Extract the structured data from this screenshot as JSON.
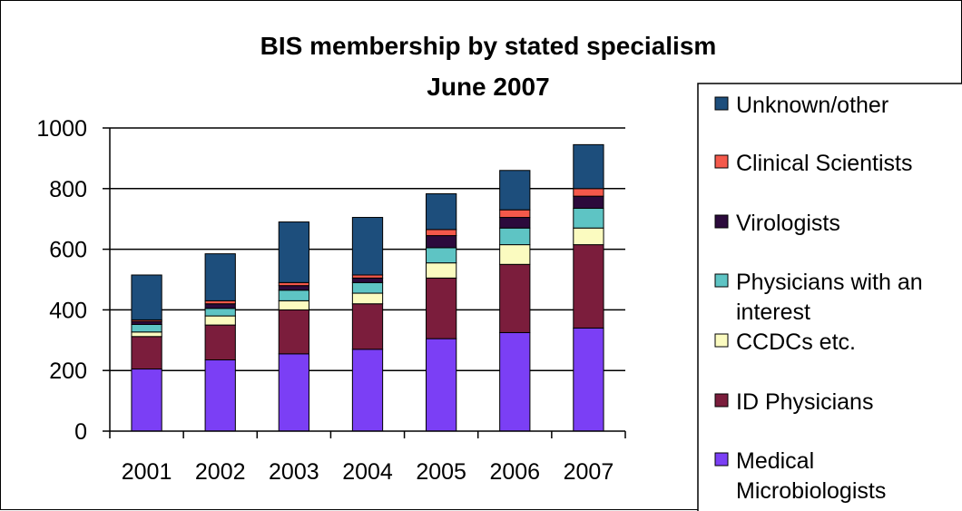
{
  "chart_data": {
    "type": "bar",
    "stacked": true,
    "title": [
      "BIS membership by stated specialism",
      "June 2007"
    ],
    "categories": [
      "2001",
      "2002",
      "2003",
      "2004",
      "2005",
      "2006",
      "2007"
    ],
    "ylim": [
      0,
      1000
    ],
    "yticks": [
      0,
      200,
      400,
      600,
      800,
      1000
    ],
    "grid": true,
    "legend_position": "right",
    "series": [
      {
        "name": "Medical Microbiologists",
        "legend_lines": [
          "Medical",
          "Microbiologists"
        ],
        "color": "#7b3ff5",
        "values": [
          205,
          235,
          255,
          270,
          305,
          325,
          340
        ]
      },
      {
        "name": "ID Physicians",
        "legend_lines": [
          "ID Physicians"
        ],
        "color": "#7b1d3c",
        "values": [
          107,
          115,
          145,
          150,
          200,
          225,
          275
        ]
      },
      {
        "name": "CCDCs etc.",
        "legend_lines": [
          "CCDCs etc."
        ],
        "color": "#fbfbc0",
        "values": [
          15,
          30,
          30,
          35,
          50,
          65,
          55
        ]
      },
      {
        "name": "Physicians with an interest",
        "legend_lines": [
          "Physicians with an",
          "interest"
        ],
        "color": "#5ec4c4",
        "values": [
          25,
          25,
          35,
          35,
          50,
          55,
          65
        ]
      },
      {
        "name": "Virologists",
        "legend_lines": [
          "Virologists"
        ],
        "color": "#2c0a3c",
        "values": [
          10,
          15,
          15,
          15,
          40,
          35,
          40
        ]
      },
      {
        "name": "Clinical Scientists",
        "legend_lines": [
          "Clinical Scientists"
        ],
        "color": "#f4594b",
        "values": [
          5,
          10,
          10,
          10,
          20,
          25,
          25
        ]
      },
      {
        "name": "Unknown/other",
        "legend_lines": [
          "Unknown/other"
        ],
        "color": "#1d4e7c",
        "values": [
          148,
          155,
          200,
          190,
          118,
          130,
          145
        ]
      }
    ]
  }
}
